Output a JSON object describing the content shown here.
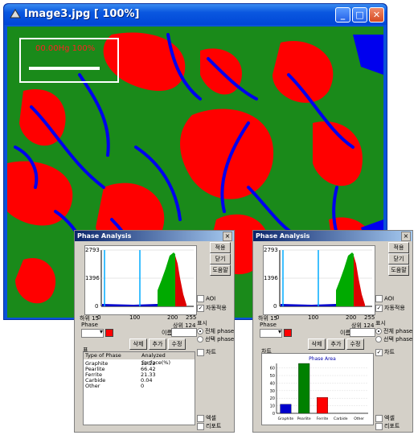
{
  "window": {
    "title": "Image3.jpg [ 100%]",
    "scale_label": "00.00Hg 100%"
  },
  "histogram": {
    "y_ticks": [
      "2793",
      "1396",
      "0"
    ],
    "x_ticks": [
      "0",
      "100",
      "200",
      "255"
    ],
    "lower_label": "하위 15",
    "upper_label": "상위 124"
  },
  "dialogs": [
    {
      "title": "Phase Analysis",
      "buttons": [
        "적용",
        "닫기",
        "도움말"
      ],
      "checks": {
        "aoi": "AOI",
        "auto_apply": "자동적용",
        "chart": "차트",
        "print": "엑셀",
        "report": "리포트"
      },
      "phase_label": "Phase",
      "name_label": "이름",
      "display_label": "표시",
      "radio_all": "전체 phase",
      "radio_select": "선택 phase",
      "actions": [
        "삭제",
        "추가",
        "수정"
      ],
      "table_group": "표",
      "table": {
        "headers": [
          "Type of Phase",
          "Analyzed Surface(%)"
        ],
        "rows": [
          [
            "Graphite",
            "12.22"
          ],
          [
            "Pearlite",
            "66.42"
          ],
          [
            "Ferrite",
            "21.33"
          ],
          [
            "Carbide",
            "0.04"
          ],
          [
            "Other",
            "0"
          ]
        ]
      }
    },
    {
      "title": "Phase Analysis",
      "buttons": [
        "적용",
        "닫기",
        "도움말"
      ],
      "checks": {
        "aoi": "AOI",
        "auto_apply": "자동적용",
        "chart": "차트",
        "print": "엑셀",
        "report": "리포트"
      },
      "phase_label": "Phase",
      "name_label": "이름",
      "display_label": "표시",
      "radio_all": "전체 phase",
      "radio_select": "선택 phase",
      "actions": [
        "삭제",
        "추가",
        "수정"
      ],
      "chart_group": "차트"
    }
  ],
  "chart_data": {
    "type": "bar",
    "title": "Phase Area",
    "categories": [
      "Graphite",
      "Pearlite",
      "Ferrite",
      "Carbide",
      "Other"
    ],
    "values": [
      12,
      66,
      21,
      0,
      0
    ],
    "colors": [
      "#0000cc",
      "#008000",
      "#ff0000",
      "#808080",
      "#808080"
    ],
    "y_ticks": [
      "60",
      "50",
      "40",
      "30",
      "20",
      "10",
      "0"
    ],
    "ylim": [
      0,
      66
    ]
  }
}
